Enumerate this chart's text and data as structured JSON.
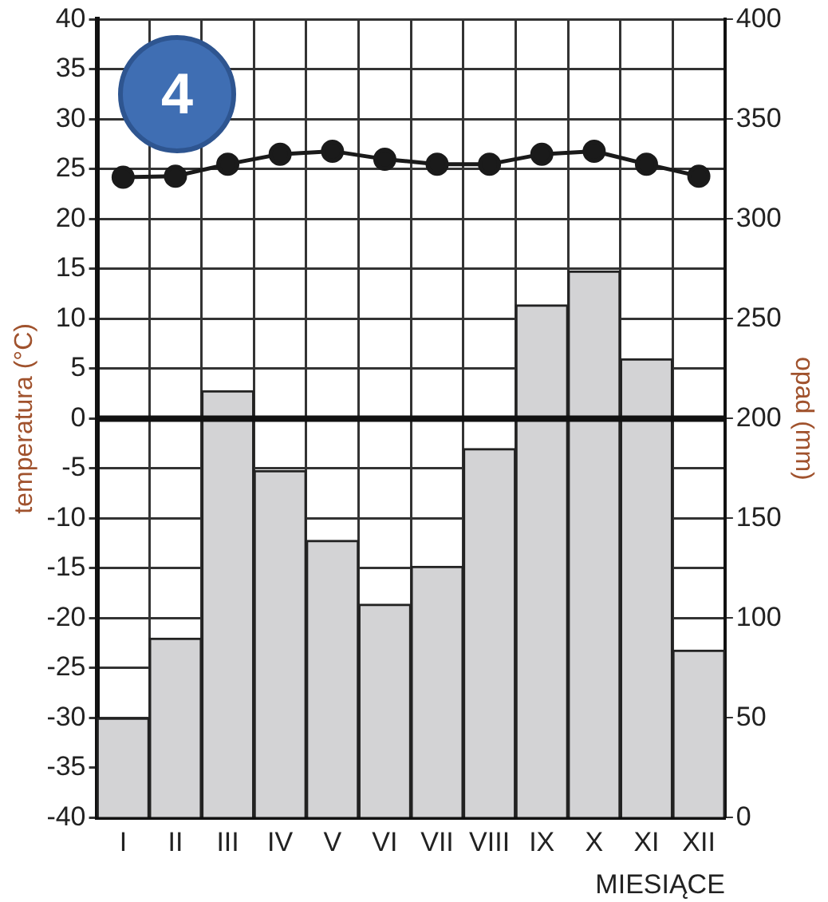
{
  "chart_data": {
    "type": "bar",
    "xlabel": "MIESIĄCE",
    "ylabel": "temperatura (°C)",
    "y2label": "opad (mm)",
    "categories": [
      "I",
      "II",
      "III",
      "IV",
      "V",
      "VI",
      "VII",
      "VIII",
      "IX",
      "X",
      "XI",
      "XII"
    ],
    "series": [
      {
        "axis": "y2",
        "color": "#d3d3d5",
        "values": [
          50,
          90,
          214,
          174,
          139,
          107,
          126,
          185,
          257,
          274,
          230,
          84
        ]
      },
      {
        "type": "line",
        "axis": "y",
        "color": "#1a1a1a",
        "marker": "circle",
        "values": [
          24.2,
          24.3,
          25.5,
          26.5,
          26.8,
          26,
          25.5,
          25.5,
          26.5,
          26.8,
          25.5,
          24.3
        ]
      }
    ],
    "ylim": [
      -40,
      40
    ],
    "yticks": [
      -40,
      -35,
      -30,
      -25,
      -20,
      -15,
      -10,
      -5,
      0,
      5,
      10,
      15,
      20,
      25,
      30,
      35,
      40
    ],
    "y2lim": [
      0,
      400
    ],
    "y2ticks": [
      0,
      50,
      100,
      150,
      200,
      250,
      300,
      350,
      400
    ],
    "ref_lines": [
      {
        "axis": "y",
        "value": 0,
        "color": "#111111"
      }
    ],
    "grid": true,
    "legend": false,
    "annotations": [
      "4"
    ]
  }
}
